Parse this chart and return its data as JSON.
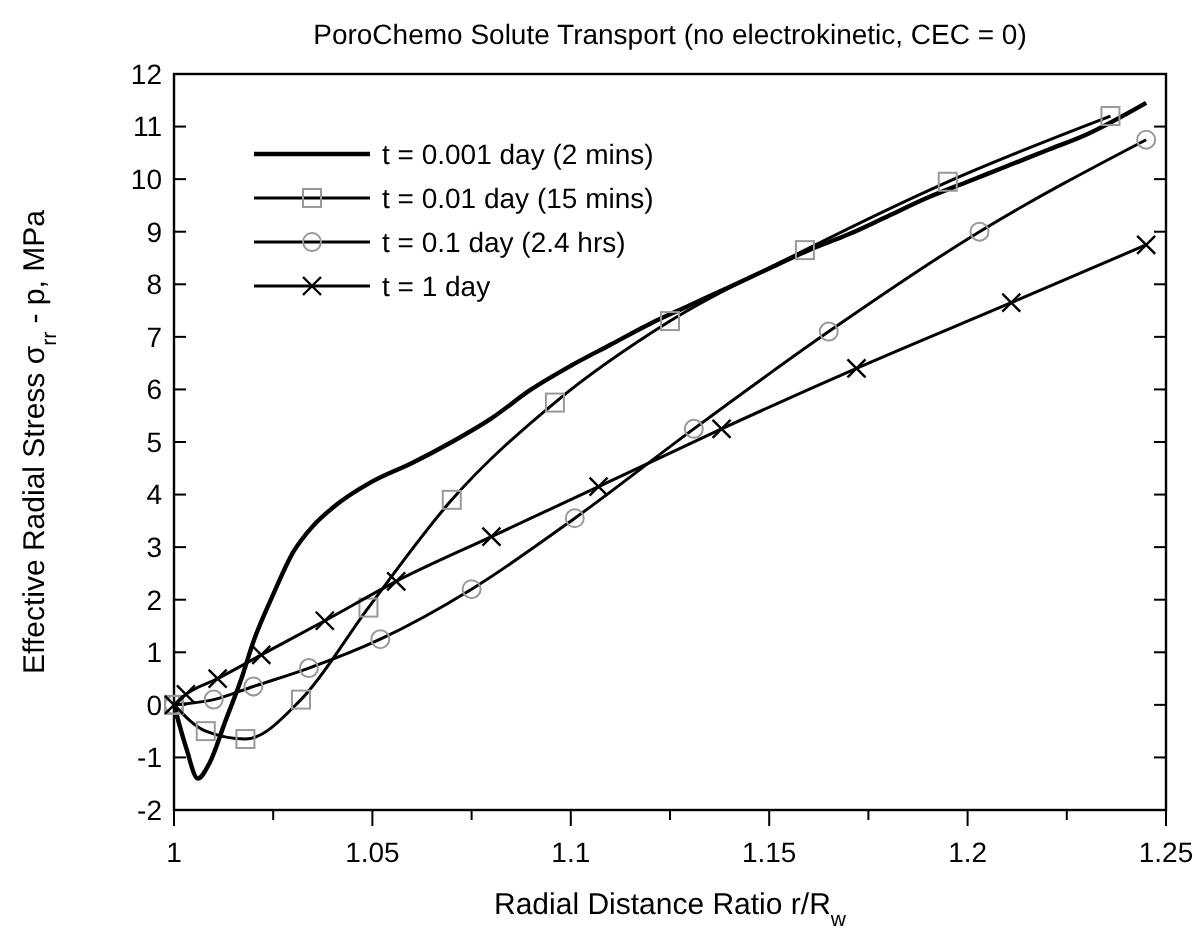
{
  "chart_data": {
    "type": "line",
    "title": "PoroChemo Solute Transport (no electrokinetic, CEC = 0)",
    "xlabel": "Radial Distance Ratio r/R$_{w}$",
    "ylabel": "Effective Radial Stress σ$_{rr}$ - p, MPa",
    "xlim": [
      1,
      1.25
    ],
    "xticks": [
      1,
      {
        "value": 1.025,
        "label": null
      },
      1.05,
      {
        "value": 1.075,
        "label": null
      },
      1.1,
      {
        "value": 1.125,
        "label": null
      },
      1.15,
      {
        "value": 1.175,
        "label": null
      },
      1.2,
      {
        "value": 1.225,
        "label": null
      },
      1.25
    ],
    "ylim": [
      -2,
      12
    ],
    "yticks": [
      -2,
      -1,
      0,
      1,
      2,
      3,
      4,
      5,
      6,
      7,
      8,
      9,
      10,
      11,
      12
    ],
    "grid": false,
    "legend": "top left",
    "series": [
      {
        "name": "t = 0.001 day (2 mins)",
        "color": "#000000",
        "marker": "none",
        "x": [
          1,
          1.003,
          1.006,
          1.009,
          1.013,
          1.017,
          1.02,
          1.025,
          1.03,
          1.035,
          1.04,
          1.05,
          1.06,
          1.07,
          1.08,
          1.09,
          1.1,
          1.11,
          1.12,
          1.13,
          1.14,
          1.15,
          1.16,
          1.17,
          1.18,
          1.19,
          1.2,
          1.21,
          1.22,
          1.23,
          1.245
        ],
        "values": [
          0,
          -0.8,
          -1.4,
          -1.1,
          -0.3,
          0.5,
          1.2,
          2.1,
          2.9,
          3.4,
          3.75,
          4.25,
          4.6,
          5.0,
          5.45,
          6.0,
          6.45,
          6.85,
          7.25,
          7.6,
          7.95,
          8.3,
          8.65,
          8.95,
          9.3,
          9.65,
          9.95,
          10.25,
          10.55,
          10.85,
          11.45
        ]
      },
      {
        "name": "t = 0.01 day (15 mins)",
        "color": "#000000",
        "marker": "square",
        "x": [
          1,
          1.008,
          1.018,
          1.032,
          1.049,
          1.07,
          1.096,
          1.125,
          1.159,
          1.195,
          1.236
        ],
        "values": [
          0,
          -0.5,
          -0.65,
          0.1,
          1.85,
          3.9,
          5.75,
          7.3,
          8.65,
          9.95,
          11.2
        ]
      },
      {
        "name": "t = 0.1 day (2.4 hrs)",
        "color": "#000000",
        "marker": "circle",
        "x": [
          1,
          1.01,
          1.02,
          1.034,
          1.052,
          1.075,
          1.101,
          1.131,
          1.165,
          1.203,
          1.245
        ],
        "values": [
          0,
          0.1,
          0.35,
          0.7,
          1.25,
          2.2,
          3.55,
          5.25,
          7.1,
          9.0,
          10.75
        ]
      },
      {
        "name": "t = 1 day",
        "color": "#000000",
        "marker": "cross",
        "x": [
          1,
          1.003,
          1.011,
          1.022,
          1.038,
          1.056,
          1.08,
          1.107,
          1.138,
          1.172,
          1.211,
          1.245
        ],
        "values": [
          0,
          0.2,
          0.5,
          0.95,
          1.6,
          2.35,
          3.2,
          4.15,
          5.25,
          6.4,
          7.65,
          8.75
        ]
      }
    ]
  }
}
